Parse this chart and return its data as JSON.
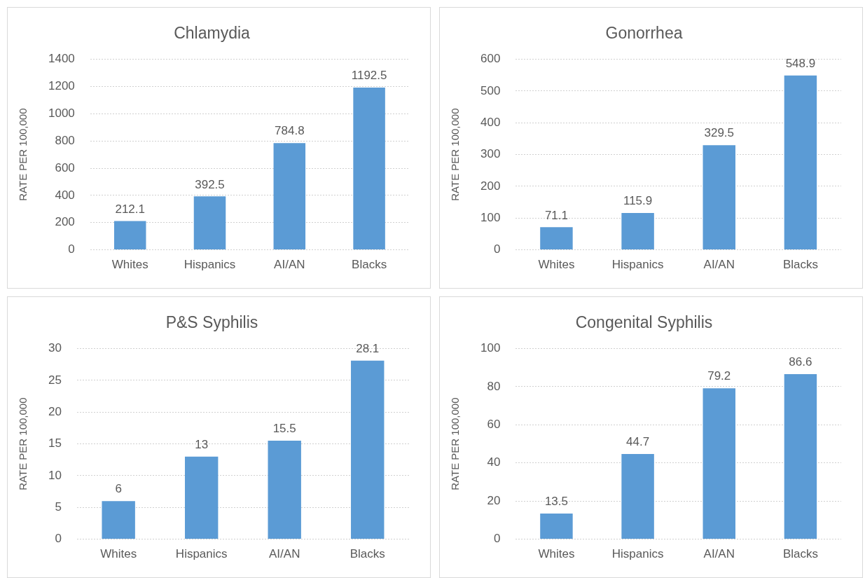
{
  "chart_data": [
    {
      "type": "bar",
      "title": "Chlamydia",
      "ylabel": "RATE PER 100,000",
      "categories": [
        "Whites",
        "Hispanics",
        "AI/AN",
        "Blacks"
      ],
      "values": [
        212.1,
        392.5,
        784.8,
        1192.5
      ],
      "color": "#5b9bd5",
      "ylim": [
        0,
        1400
      ],
      "yticks": [
        0,
        200,
        400,
        600,
        800,
        1000,
        1200,
        1400
      ],
      "grid": "y",
      "data_labels": true
    },
    {
      "type": "bar",
      "title": "Gonorrhea",
      "ylabel": "RATE PER 100,000",
      "categories": [
        "Whites",
        "Hispanics",
        "AI/AN",
        "Blacks"
      ],
      "values": [
        71.1,
        115.9,
        329.5,
        548.9
      ],
      "color": "#5b9bd5",
      "ylim": [
        0,
        600
      ],
      "yticks": [
        0,
        100,
        200,
        300,
        400,
        500,
        600
      ],
      "grid": "y",
      "data_labels": true
    },
    {
      "type": "bar",
      "title": "P&S Syphilis",
      "ylabel": "RATE PER 100,000",
      "categories": [
        "Whites",
        "Hispanics",
        "AI/AN",
        "Blacks"
      ],
      "values": [
        6,
        13,
        15.5,
        28.1
      ],
      "color": "#5b9bd5",
      "ylim": [
        0,
        30
      ],
      "yticks": [
        0,
        5,
        10,
        15,
        20,
        25,
        30
      ],
      "grid": "y",
      "data_labels": true
    },
    {
      "type": "bar",
      "title": "Congenital Syphilis",
      "ylabel": "RATE PER 100,000",
      "categories": [
        "Whites",
        "Hispanics",
        "AI/AN",
        "Blacks"
      ],
      "values": [
        13.5,
        44.7,
        79.2,
        86.6
      ],
      "color": "#5b9bd5",
      "ylim": [
        0,
        100
      ],
      "yticks": [
        0,
        20,
        40,
        60,
        80,
        100
      ],
      "grid": "y",
      "data_labels": true
    }
  ]
}
